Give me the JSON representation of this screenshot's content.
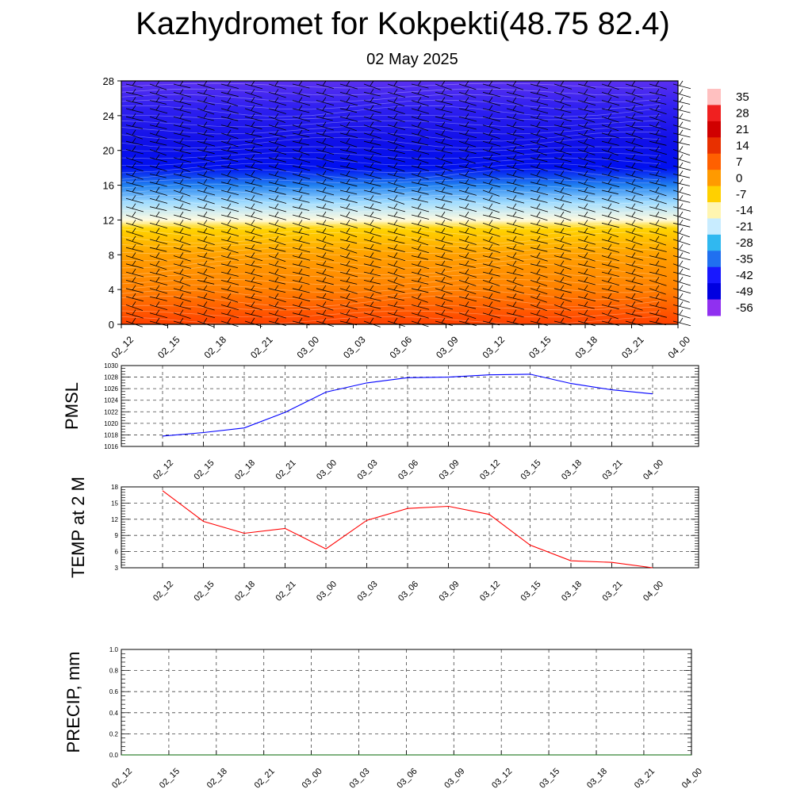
{
  "header": {
    "title": "Kazhydromet for Kokpekti(48.75 82.4)",
    "subtitle": "02 May 2025"
  },
  "chart_data": [
    {
      "type": "heatmap",
      "description_of_axes": "vertical level vs forecast time",
      "x_tick_labels": [
        "02_12",
        "02_15",
        "02_18",
        "02_21",
        "03_00",
        "03_03",
        "03_06",
        "03_09",
        "03_12",
        "03_15",
        "03_18",
        "03_21",
        "04_00"
      ],
      "y_ticks": [
        0,
        4,
        8,
        12,
        16,
        20,
        24,
        28
      ],
      "ylim": [
        0,
        28
      ],
      "colorbar": {
        "labels": [
          35,
          28,
          21,
          14,
          7,
          0,
          -7,
          -14,
          -21,
          -28,
          -35,
          -42,
          -49,
          -56
        ],
        "colors": [
          "#ffc0c0",
          "#f02020",
          "#d00000",
          "#e83000",
          "#ff6000",
          "#ff9a00",
          "#ffd000",
          "#fff5b0",
          "#c8ecff",
          "#30b8f0",
          "#2070f0",
          "#1818ff",
          "#0000e0",
          "#9030f0"
        ]
      },
      "vertical_temperature_profile": [
        {
          "level": 0,
          "color": "#ff4000"
        },
        {
          "level": 4,
          "color": "#ff8000"
        },
        {
          "level": 8,
          "color": "#ffa000"
        },
        {
          "level": 11,
          "color": "#ffd400"
        },
        {
          "level": 12,
          "color": "#fffbe0"
        },
        {
          "level": 14,
          "color": "#a0dcff"
        },
        {
          "level": 16,
          "color": "#2080f0"
        },
        {
          "level": 18,
          "color": "#0010f0"
        },
        {
          "level": 21,
          "color": "#1010e8"
        },
        {
          "level": 25,
          "color": "#3020f0"
        },
        {
          "level": 28,
          "color": "#5a30f0"
        }
      ],
      "wind_barb_columns": 24,
      "wind_barb_rows": 30
    },
    {
      "type": "line",
      "ylabel": "PMSL",
      "x": [
        "02_12",
        "02_15",
        "02_18",
        "02_21",
        "03_00",
        "03_03",
        "03_06",
        "03_09",
        "03_12",
        "03_15",
        "03_18",
        "03_21",
        "04_00"
      ],
      "series": [
        {
          "values": [
            1017.8,
            1018.4,
            1019.2,
            1021.9,
            1025.4,
            1027.0,
            1027.9,
            1028.0,
            1028.4,
            1028.5,
            1026.9,
            1025.8,
            1025.1
          ],
          "color": "#0000ff"
        }
      ],
      "ylim": [
        1016,
        1030
      ],
      "y_ticks": [
        1016,
        1018,
        1020,
        1022,
        1024,
        1026,
        1028,
        1030
      ]
    },
    {
      "type": "line",
      "ylabel": "TEMP at 2 M",
      "x": [
        "02_12",
        "02_15",
        "02_18",
        "02_21",
        "03_00",
        "03_03",
        "03_06",
        "03_09",
        "03_12",
        "03_15",
        "03_18",
        "03_21",
        "04_00"
      ],
      "series": [
        {
          "values": [
            17.3,
            11.6,
            9.4,
            10.3,
            6.5,
            11.8,
            14.0,
            14.4,
            12.9,
            7.2,
            4.3,
            4.0,
            3.0
          ],
          "color": "#ff0000"
        }
      ],
      "ylim": [
        3,
        18
      ],
      "y_ticks": [
        3,
        6,
        9,
        12,
        15,
        18
      ]
    },
    {
      "type": "line",
      "ylabel": "PRECIP, mm",
      "x_tick_labels": [
        "02_12",
        "02_15",
        "02_18",
        "02_21",
        "03_00",
        "03_03",
        "03_06",
        "03_09",
        "03_12",
        "03_15",
        "03_18",
        "03_21",
        "04_00"
      ],
      "series": [
        {
          "values": [
            0,
            0,
            0,
            0,
            0,
            0,
            0,
            0,
            0,
            0,
            0,
            0,
            0
          ],
          "color": "#006400"
        }
      ],
      "ylim": [
        0,
        1.0
      ],
      "y_ticks": [
        "0.0",
        "0.2",
        "0.4",
        "0.6",
        "0.8",
        "1.0"
      ]
    }
  ]
}
